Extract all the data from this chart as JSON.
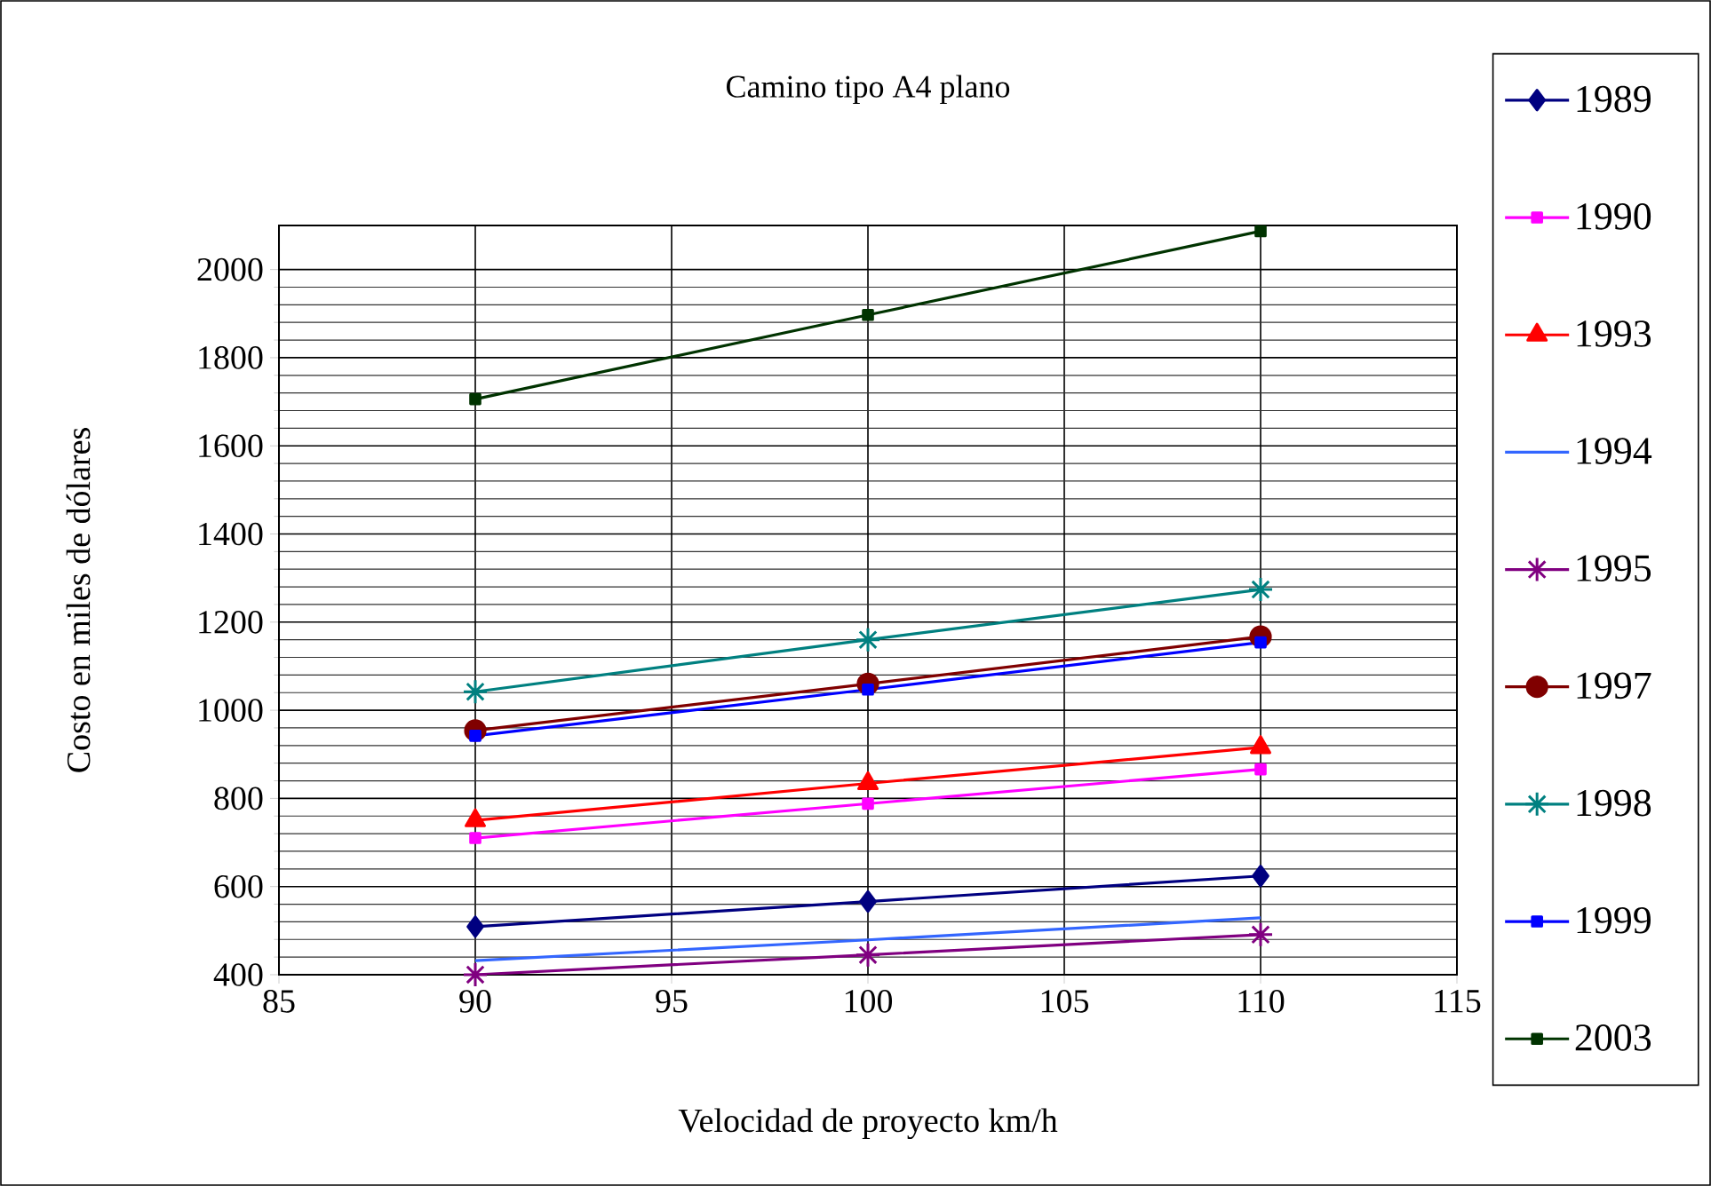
{
  "chart_data": {
    "type": "line",
    "title": "Camino tipo A4 plano",
    "xlabel": "Velocidad de proyecto km/h",
    "ylabel": "Costo en miles de dólares",
    "x": [
      90,
      100,
      110
    ],
    "xlim": [
      85,
      115
    ],
    "xticks": [
      85,
      90,
      95,
      100,
      105,
      110,
      115
    ],
    "ylim": [
      400,
      2100
    ],
    "yticks": [
      400,
      600,
      800,
      1000,
      1200,
      1400,
      1600,
      1800,
      2000
    ],
    "grid": true,
    "legend": "right",
    "series": [
      {
        "name": "1989",
        "color": "#000080",
        "marker": "diamond",
        "values": [
          509,
          566,
          624
        ]
      },
      {
        "name": "1990",
        "color": "#ff00ff",
        "marker": "square",
        "values": [
          710,
          788,
          866
        ]
      },
      {
        "name": "1993",
        "color": "#ff0000",
        "marker": "triangle",
        "values": [
          750,
          834,
          916
        ]
      },
      {
        "name": "1994",
        "color": "#3366ff",
        "marker": "none",
        "values": [
          432,
          479,
          529
        ]
      },
      {
        "name": "1995",
        "color": "#800080",
        "marker": "cross",
        "values": [
          400,
          445,
          491
        ]
      },
      {
        "name": "1997",
        "color": "#800000",
        "marker": "circle",
        "values": [
          954,
          1060,
          1167
        ]
      },
      {
        "name": "1998",
        "color": "#008080",
        "marker": "cross",
        "values": [
          1042,
          1160,
          1274
        ]
      },
      {
        "name": "1999",
        "color": "#0000ff",
        "marker": "square",
        "values": [
          942,
          1047,
          1154
        ]
      },
      {
        "name": "2003",
        "color": "#003300",
        "marker": "square",
        "values": [
          1706,
          1897,
          2087
        ]
      }
    ]
  }
}
